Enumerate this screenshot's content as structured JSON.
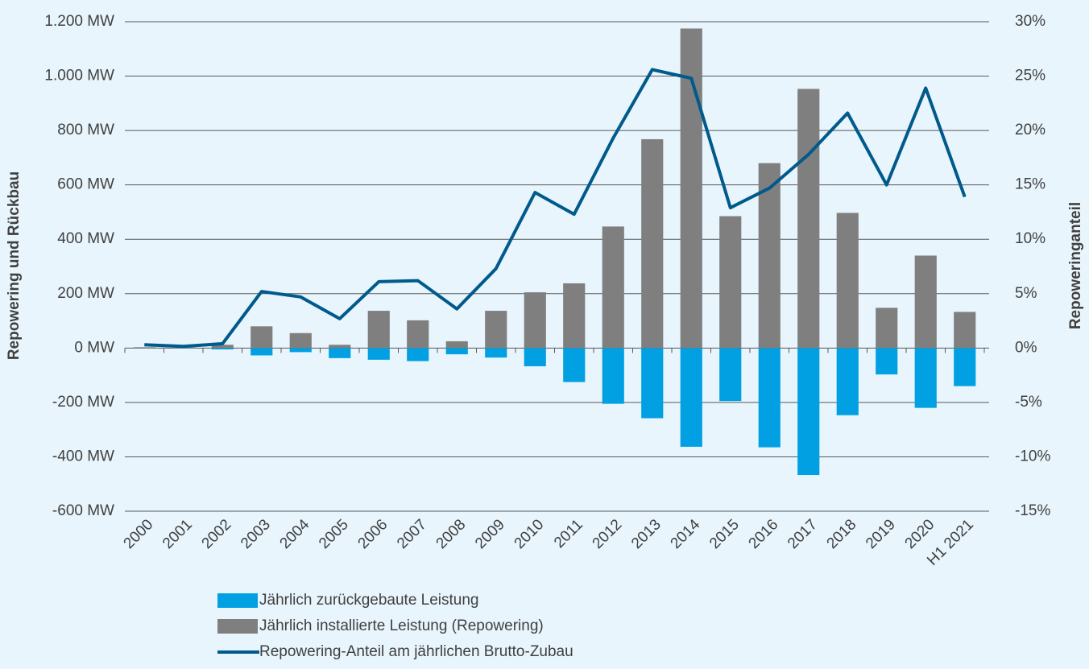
{
  "chart_data": {
    "type": "bar",
    "y_label": "Repowering und Rückbau",
    "y2_label": "Repoweringanteil",
    "categories": [
      "2000",
      "2001",
      "2002",
      "2003",
      "2004",
      "2005",
      "2006",
      "2007",
      "2008",
      "2009",
      "2010",
      "2011",
      "2012",
      "2013",
      "2014",
      "2015",
      "2016",
      "2017",
      "2018",
      "2019",
      "2020",
      "H1 2021"
    ],
    "series": [
      {
        "name": "Jährlich zurückgebaute Leistung",
        "type": "bar",
        "color": "#00a0e3",
        "values": [
          0,
          -1,
          -5,
          -27,
          -15,
          -37,
          -43,
          -48,
          -23,
          -35,
          -67,
          -125,
          -205,
          -258,
          -363,
          -195,
          -365,
          -467,
          -247,
          -97,
          -220,
          -140
        ]
      },
      {
        "name": "Jährlich installierte Leistung (Repowering)",
        "type": "bar",
        "color": "#7f7f7f",
        "values": [
          3,
          2,
          12,
          80,
          55,
          12,
          137,
          102,
          25,
          137,
          205,
          238,
          447,
          768,
          1175,
          485,
          680,
          953,
          497,
          148,
          340,
          133
        ]
      },
      {
        "name": "Repowering-Anteil am jährlichen Brutto-Zubau",
        "type": "line",
        "color": "#005a8c",
        "axis": "y2",
        "values": [
          0.3,
          0.15,
          0.4,
          5.2,
          4.7,
          2.7,
          6.1,
          6.2,
          3.6,
          7.3,
          14.3,
          12.3,
          19.3,
          25.6,
          24.8,
          12.9,
          14.7,
          17.8,
          21.6,
          15.0,
          23.9,
          13.9
        ]
      }
    ],
    "ylim": [
      -600,
      1200
    ],
    "yticks": [
      {
        "value": -600,
        "label": "-600 MW"
      },
      {
        "value": -400,
        "label": "-400 MW"
      },
      {
        "value": -200,
        "label": "-200 MW"
      },
      {
        "value": 0,
        "label": "0 MW"
      },
      {
        "value": 200,
        "label": "200 MW"
      },
      {
        "value": 400,
        "label": "400 MW"
      },
      {
        "value": 600,
        "label": "600 MW"
      },
      {
        "value": 800,
        "label": "800 MW"
      },
      {
        "value": 1000,
        "label": "1.000 MW"
      },
      {
        "value": 1200,
        "label": "1.200 MW"
      }
    ],
    "y2lim": [
      -15,
      30
    ],
    "y2ticks": [
      {
        "value": -15,
        "label": "-15%"
      },
      {
        "value": -10,
        "label": "-10%"
      },
      {
        "value": -5,
        "label": "-5%"
      },
      {
        "value": 0,
        "label": "0%"
      },
      {
        "value": 5,
        "label": "5%"
      },
      {
        "value": 10,
        "label": "10%"
      },
      {
        "value": 15,
        "label": "15%"
      },
      {
        "value": 20,
        "label": "20%"
      },
      {
        "value": 25,
        "label": "25%"
      },
      {
        "value": 30,
        "label": "30%"
      }
    ],
    "grid": true,
    "legend": "bottom"
  }
}
